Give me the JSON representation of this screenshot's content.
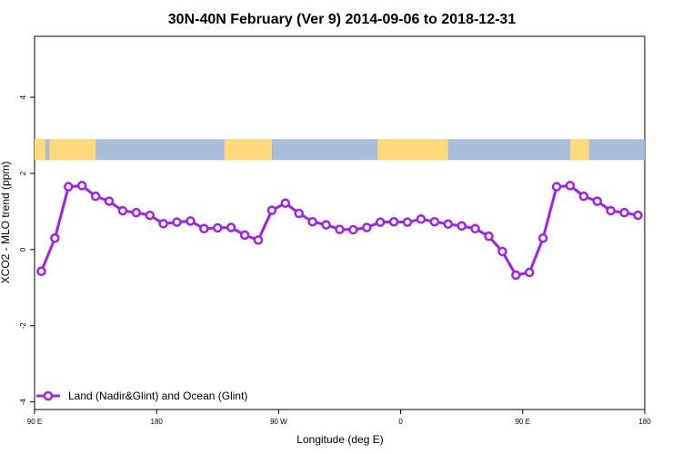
{
  "chart_data": {
    "type": "line",
    "title": "30N-40N February (Ver 9)   2014-09-06 to 2018-12-31",
    "xlabel": "Longitude (deg E)",
    "ylabel": "XCO2 - MLO trend (ppm)",
    "xlim": [
      90,
      540
    ],
    "ylim": [
      -4.2,
      5.6
    ],
    "grid": false,
    "legend_position": "bottom-left",
    "x_ticks": [
      {
        "value": 90,
        "label": "90 E"
      },
      {
        "value": 180,
        "label": "180"
      },
      {
        "value": 270,
        "label": "90 W"
      },
      {
        "value": 360,
        "label": "0"
      },
      {
        "value": 450,
        "label": "90 E"
      },
      {
        "value": 540,
        "label": "180"
      }
    ],
    "y_ticks": [
      {
        "value": -4,
        "label": "-4"
      },
      {
        "value": -2,
        "label": "-2"
      },
      {
        "value": 0,
        "label": "0"
      },
      {
        "value": 2,
        "label": "2"
      },
      {
        "value": 4,
        "label": "4"
      }
    ],
    "map_strip": {
      "y_range": [
        2.35,
        2.9
      ],
      "land_color": "#FFD97A",
      "ocean_color": "#A9BCD9",
      "land_segments": [
        [
          90,
          98
        ],
        [
          101,
          111
        ],
        [
          105,
          135
        ],
        [
          230,
          265
        ],
        [
          343,
          395
        ],
        [
          485,
          499
        ]
      ]
    },
    "series": [
      {
        "name": "Land (Nadir&Glint) and Ocean (Glint)",
        "color": "#A020F0",
        "x": [
          95,
          105,
          115,
          125,
          135,
          145,
          155,
          165,
          175,
          185,
          195,
          205,
          215,
          225,
          235,
          245,
          255,
          265,
          275,
          285,
          295,
          305,
          315,
          325,
          335,
          345,
          355,
          365,
          375,
          385,
          395,
          405,
          415,
          425,
          435,
          445,
          455,
          465,
          475,
          485,
          495,
          505,
          515,
          525,
          535
        ],
        "values": [
          -0.57,
          0.3,
          1.65,
          1.68,
          1.4,
          1.27,
          1.02,
          0.97,
          0.9,
          0.68,
          0.72,
          0.75,
          0.55,
          0.57,
          0.58,
          0.38,
          0.25,
          1.03,
          1.22,
          0.95,
          0.73,
          0.65,
          0.53,
          0.52,
          0.58,
          0.72,
          0.73,
          0.72,
          0.8,
          0.73,
          0.67,
          0.62,
          0.55,
          0.35,
          -0.05,
          -0.67,
          -0.6,
          0.3,
          1.65,
          1.68,
          1.4,
          1.27,
          1.02,
          0.97,
          0.9
        ]
      }
    ]
  }
}
